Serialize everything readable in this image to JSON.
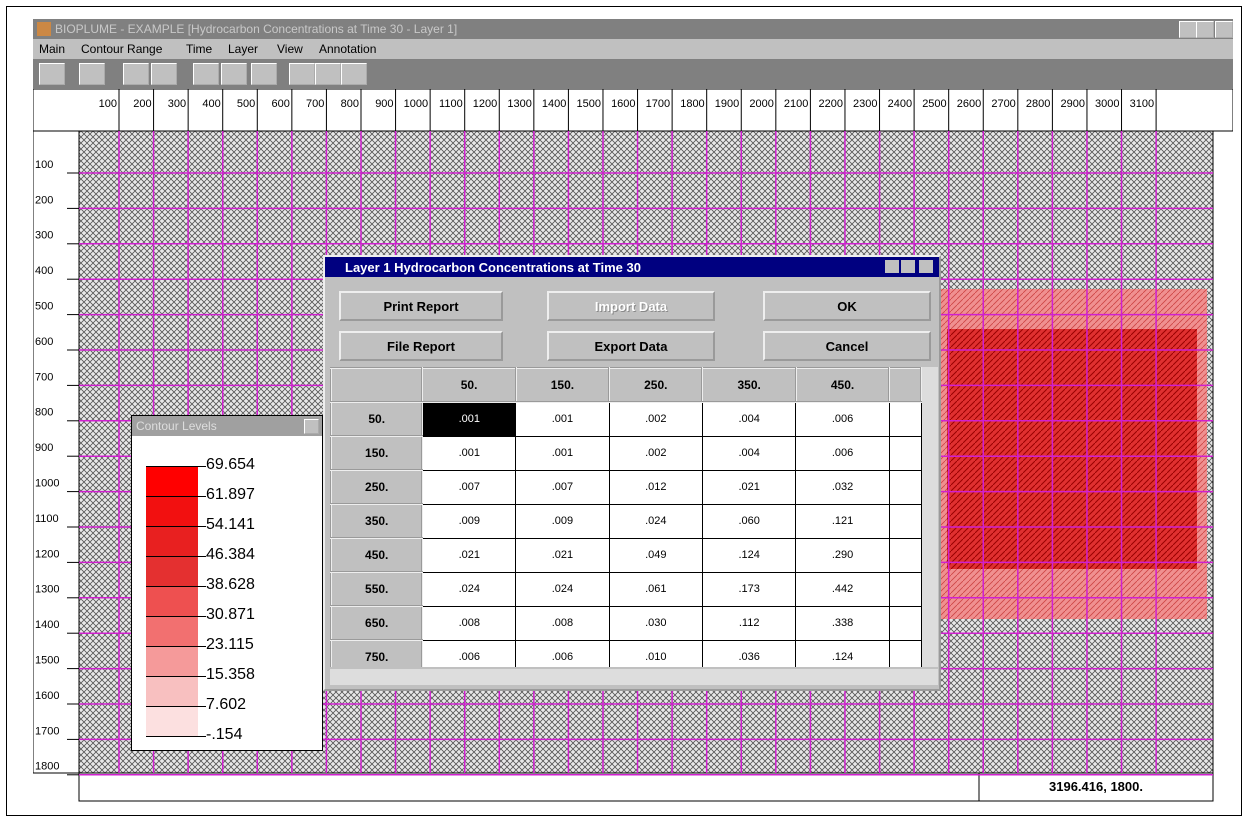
{
  "window": {
    "title": "BIOPLUME - EXAMPLE [Hydrocarbon Concentrations at Time 30 - Layer 1]",
    "menu": [
      "Main",
      "Contour Range",
      "Time",
      "Layer",
      "View",
      "Annotation"
    ]
  },
  "ruler": {
    "top": [
      100,
      200,
      300,
      400,
      500,
      600,
      700,
      800,
      900,
      1000,
      1100,
      1200,
      1300,
      1400,
      1500,
      1600,
      1700,
      1800,
      1900,
      2000,
      2100,
      2200,
      2300,
      2400,
      2500,
      2600,
      2700,
      2800,
      2900,
      3000,
      3100
    ],
    "left": [
      100,
      200,
      300,
      400,
      500,
      600,
      700,
      800,
      900,
      1000,
      1100,
      1200,
      1300,
      1400,
      1500,
      1600,
      1700,
      1800
    ]
  },
  "dialog": {
    "title": "Layer 1 Hydrocarbon Concentrations at Time 30",
    "buttons": [
      [
        "Print Report",
        "Import Data",
        "OK"
      ],
      [
        "File Report",
        "Export Data",
        "Cancel"
      ]
    ],
    "table": {
      "columns": [
        "50.",
        "150.",
        "250.",
        "350.",
        "450."
      ],
      "rows": [
        {
          "header": "50.",
          "cells": [
            ".001",
            ".001",
            ".002",
            ".004",
            ".006"
          ]
        },
        {
          "header": "150.",
          "cells": [
            ".001",
            ".001",
            ".002",
            ".004",
            ".006"
          ]
        },
        {
          "header": "250.",
          "cells": [
            ".007",
            ".007",
            ".012",
            ".021",
            ".032"
          ]
        },
        {
          "header": "350.",
          "cells": [
            ".009",
            ".009",
            ".024",
            ".060",
            ".121"
          ]
        },
        {
          "header": "450.",
          "cells": [
            ".021",
            ".021",
            ".049",
            ".124",
            ".290"
          ]
        },
        {
          "header": "550.",
          "cells": [
            ".024",
            ".024",
            ".061",
            ".173",
            ".442"
          ]
        },
        {
          "header": "650.",
          "cells": [
            ".008",
            ".008",
            ".030",
            ".112",
            ".338"
          ]
        },
        {
          "header": "750.",
          "cells": [
            ".006",
            ".006",
            ".010",
            ".036",
            ".124"
          ]
        }
      ]
    }
  },
  "contour_levels": {
    "title": "Contour Levels",
    "levels": [
      "69.654",
      "61.897",
      "54.141",
      "46.384",
      "38.628",
      "30.871",
      "23.115",
      "15.358",
      "7.602",
      "-.154"
    ]
  },
  "status": {
    "coordinates": "3196.416, 1800."
  }
}
